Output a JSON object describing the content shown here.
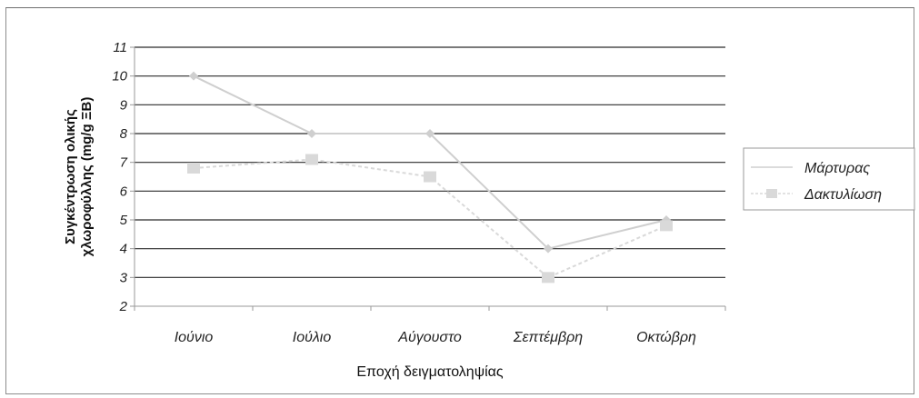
{
  "chart_data": {
    "type": "line",
    "categories": [
      "Ιούνιο",
      "Ιούλιο",
      "Αύγουστο",
      "Σεπτέμβρη",
      "Οκτώβρη"
    ],
    "series": [
      {
        "name": "Μάρτυρας",
        "values": [
          10.0,
          8.0,
          8.0,
          4.0,
          5.0
        ],
        "color": "#cfcfcf"
      },
      {
        "name": "Δακτυλίωση",
        "values": [
          6.8,
          7.1,
          6.5,
          3.0,
          4.8
        ],
        "color": "#d9d9d9"
      }
    ],
    "xlabel": "Εποχή δειγματοληψίας",
    "ylabel": [
      "Συγκέντρωση ολικής",
      "χλωροφύλλης (mg/g ΞΒ)"
    ],
    "ylim": [
      2,
      11
    ],
    "yticks": [
      "2",
      "3",
      "4",
      "5",
      "6",
      "7",
      "8",
      "9",
      "10",
      "11"
    ],
    "grid": true,
    "legend_position": "right"
  }
}
